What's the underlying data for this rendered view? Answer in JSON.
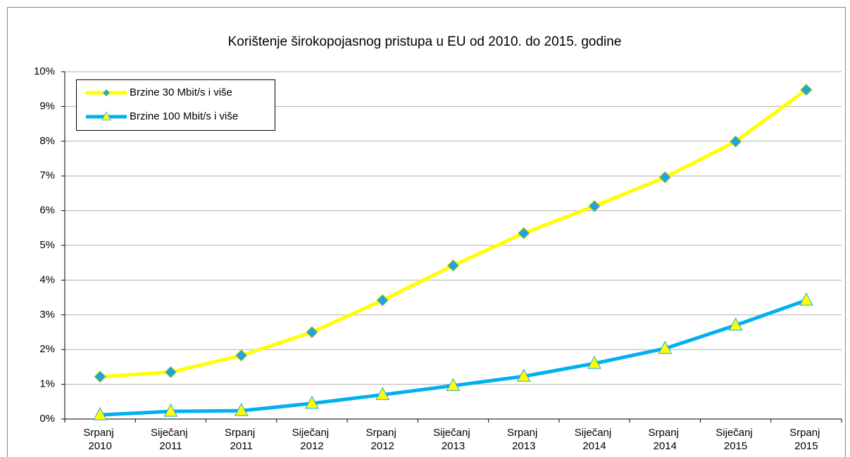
{
  "chart_data": {
    "type": "line",
    "title": "Korištenje širokopojasnog pristupa u EU od 2010. do 2015. godine",
    "categories": [
      "Srpanj 2010",
      "Siječanj 2011",
      "Srpanj 2011",
      "Siječanj 2012",
      "Srpanj 2012",
      "Siječanj 2013",
      "Srpanj 2013",
      "Siječanj 2014",
      "Srpanj 2014",
      "Siječanj 2015",
      "Srpanj 2015"
    ],
    "series": [
      {
        "name": "Brzine 30 Mbit/s i više",
        "color": "#ffff00",
        "marker": "diamond",
        "marker_color": "#1ea5dc",
        "values": [
          1.22,
          1.35,
          1.83,
          2.5,
          3.42,
          4.42,
          5.35,
          6.13,
          6.96,
          7.99,
          9.48
        ]
      },
      {
        "name": "Brzine 100 Mbit/s i više",
        "color": "#00b0f0",
        "marker": "triangle",
        "marker_color": "#ffff00",
        "values": [
          0.12,
          0.22,
          0.24,
          0.45,
          0.7,
          0.96,
          1.23,
          1.6,
          2.03,
          2.7,
          3.42
        ]
      }
    ],
    "ylim": [
      0,
      10
    ],
    "yticks": [
      {
        "value": 0,
        "label": "0%"
      },
      {
        "value": 1,
        "label": "1%"
      },
      {
        "value": 2,
        "label": "2%"
      },
      {
        "value": 3,
        "label": "3%"
      },
      {
        "value": 4,
        "label": "4%"
      },
      {
        "value": 5,
        "label": "5%"
      },
      {
        "value": 6,
        "label": "6%"
      },
      {
        "value": 7,
        "label": "7%"
      },
      {
        "value": 8,
        "label": "8%"
      },
      {
        "value": 9,
        "label": "9%"
      },
      {
        "value": 10,
        "label": "10%"
      }
    ],
    "grid": true,
    "legend": "top-left"
  }
}
